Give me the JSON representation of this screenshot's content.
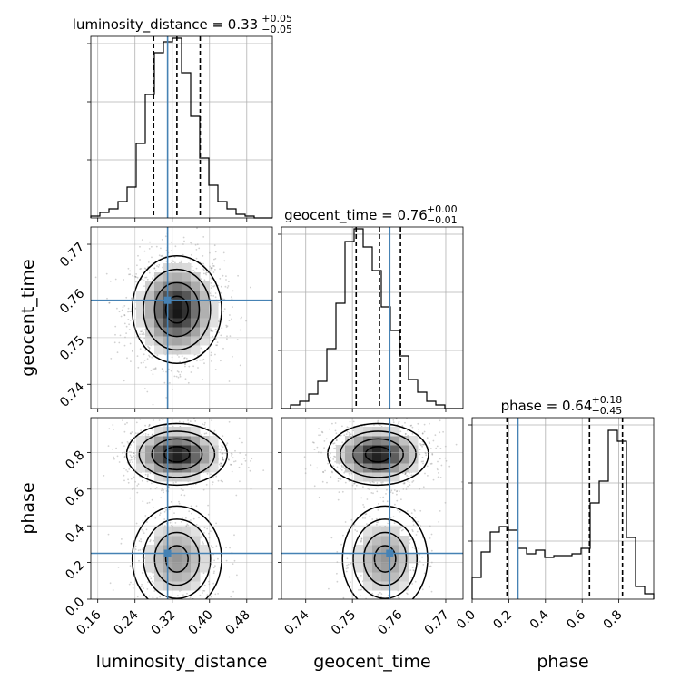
{
  "chart_data": {
    "type": "corner",
    "parameters": [
      {
        "name": "luminosity_distance",
        "range": [
          0.145,
          0.535
        ],
        "ticks": [
          0.16,
          0.24,
          0.32,
          0.4,
          0.48
        ],
        "tick_labels": [
          "0.16",
          "0.24",
          "0.32",
          "0.40",
          "0.48"
        ],
        "truth": 0.31
      },
      {
        "name": "geocent_time",
        "range": [
          0.7348,
          0.7737
        ],
        "ticks": [
          0.74,
          0.75,
          0.76,
          0.77
        ],
        "tick_labels": [
          "0.74",
          "0.75",
          "0.76",
          "0.77"
        ],
        "truth": 0.758
      },
      {
        "name": "phase",
        "range": [
          0.0,
          0.99
        ],
        "ticks": [
          0.0,
          0.2,
          0.4,
          0.6,
          0.8
        ],
        "tick_labels": [
          "0.0",
          "0.2",
          "0.4",
          "0.6",
          "0.8"
        ],
        "truth": 0.25
      }
    ],
    "titles": [
      {
        "label": "luminosity_distance = 0.33",
        "sup": "+0.05",
        "sub": "−0.05"
      },
      {
        "label": "geocent_time = 0.76",
        "sup": "+0.00",
        "sub": "−0.01"
      },
      {
        "label": "phase = 0.64",
        "sup": "+0.18",
        "sub": "−0.45"
      }
    ],
    "quantiles": [
      [
        0.28,
        0.33,
        0.38
      ],
      [
        0.7508,
        0.7558,
        0.7603
      ],
      [
        0.19,
        0.64,
        0.82
      ]
    ],
    "histograms": [
      {
        "bin_start": 0.145,
        "bin_width": 0.0195,
        "counts": [
          0.01,
          0.03,
          0.05,
          0.09,
          0.17,
          0.41,
          0.68,
          0.91,
          0.97,
          0.99,
          0.8,
          0.56,
          0.33,
          0.18,
          0.09,
          0.05,
          0.02,
          0.01,
          0.0,
          0.0
        ]
      },
      {
        "bin_start": 0.7348,
        "bin_width": 0.001945,
        "counts": [
          0.0,
          0.02,
          0.04,
          0.08,
          0.15,
          0.33,
          0.58,
          0.92,
          0.99,
          0.89,
          0.76,
          0.56,
          0.43,
          0.29,
          0.16,
          0.09,
          0.04,
          0.02,
          0.0,
          0.0
        ]
      },
      {
        "bin_start": 0.0,
        "bin_width": 0.0495,
        "counts": [
          0.12,
          0.26,
          0.37,
          0.4,
          0.38,
          0.28,
          0.25,
          0.27,
          0.23,
          0.24,
          0.24,
          0.25,
          0.28,
          0.53,
          0.65,
          0.93,
          0.87,
          0.34,
          0.07,
          0.03
        ]
      }
    ],
    "density_2d": [
      {
        "x_param": "luminosity_distance",
        "y_param": "geocent_time",
        "peaks": [
          {
            "x": 0.33,
            "y": 0.756,
            "sx": 0.04,
            "sy": 0.0048,
            "w": 1.0
          }
        ]
      },
      {
        "x_param": "luminosity_distance",
        "y_param": "phase",
        "peaks": [
          {
            "x": 0.33,
            "y": 0.79,
            "sx": 0.045,
            "sy": 0.07,
            "w": 1.0
          },
          {
            "x": 0.33,
            "y": 0.22,
            "sx": 0.04,
            "sy": 0.12,
            "w": 0.45
          }
        ]
      },
      {
        "x_param": "geocent_time",
        "y_param": "phase",
        "peaks": [
          {
            "x": 0.7555,
            "y": 0.79,
            "sx": 0.0045,
            "sy": 0.07,
            "w": 1.0
          },
          {
            "x": 0.757,
            "y": 0.22,
            "sx": 0.0038,
            "sy": 0.12,
            "w": 0.45
          }
        ]
      }
    ],
    "axis_labels": {
      "x": [
        "luminosity_distance",
        "geocent_time",
        "phase"
      ],
      "y": [
        "geocent_time",
        "phase"
      ]
    },
    "colors": {
      "truth": "#4682b4",
      "hist": "#000000",
      "grid": "#b0b0b0"
    }
  }
}
